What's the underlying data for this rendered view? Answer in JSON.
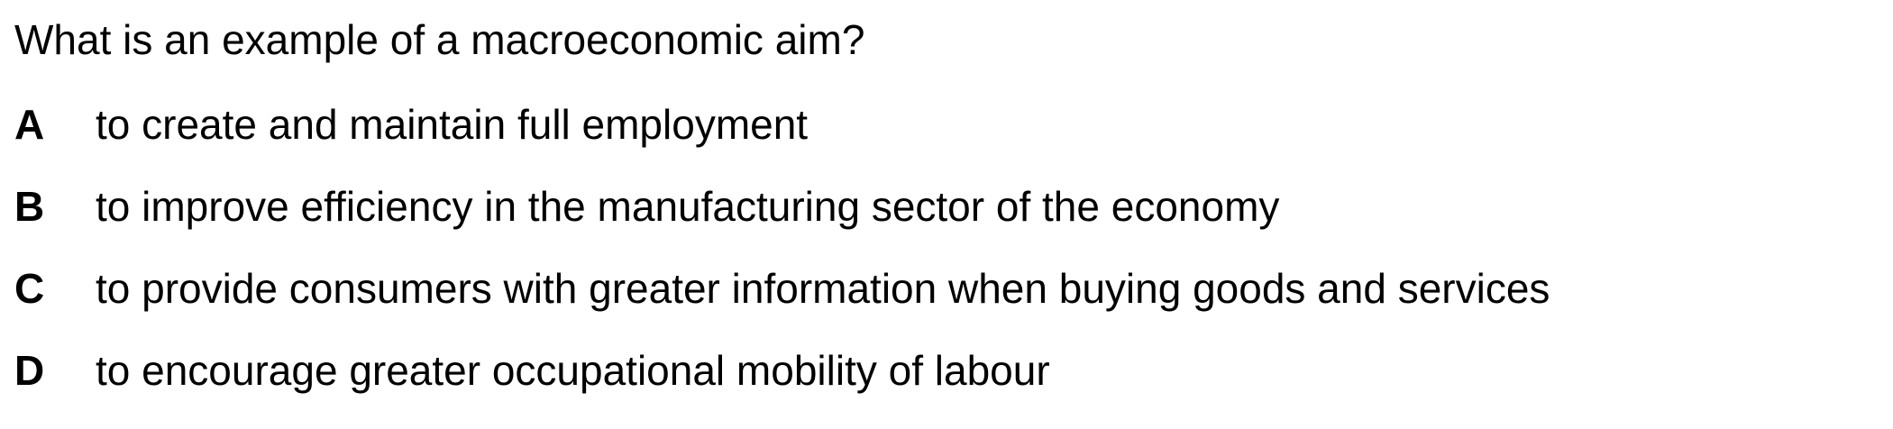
{
  "question": {
    "text": "What is an example of a macroeconomic aim?"
  },
  "options": [
    {
      "letter": "A",
      "text": "to create and maintain full employment"
    },
    {
      "letter": "B",
      "text": "to improve efficiency in the manufacturing sector of the economy"
    },
    {
      "letter": "C",
      "text": "to provide consumers with greater information when buying goods and services"
    },
    {
      "letter": "D",
      "text": "to encourage greater occupational mobility of labour"
    }
  ]
}
